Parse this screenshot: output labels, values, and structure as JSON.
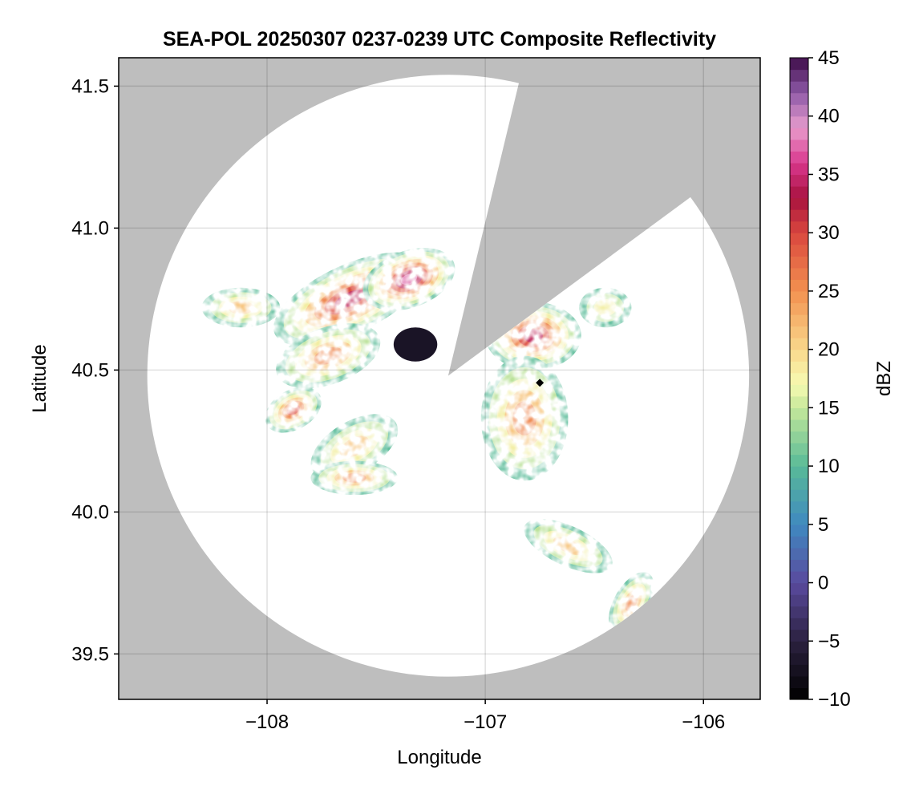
{
  "chart_data": {
    "type": "heatmap",
    "title": "SEA-POL 20250307 0237-0239 UTC Composite Reflectivity",
    "xlabel": "Longitude",
    "ylabel": "Latitude",
    "xlim": [
      -108.68,
      -105.74
    ],
    "ylim": [
      39.34,
      41.6
    ],
    "x_ticks": [
      -108,
      -107,
      -106
    ],
    "x_tick_labels": [
      "−108",
      "−107",
      "−106"
    ],
    "y_ticks": [
      39.5,
      40.0,
      40.5,
      41.0,
      41.5
    ],
    "y_tick_labels": [
      "39.5",
      "40.0",
      "40.5",
      "41.0",
      "41.5"
    ],
    "grid": true,
    "background_color": "#bebebe",
    "radar_coverage_color": "#ffffff",
    "radar_site": [
      -107.17,
      40.48
    ],
    "radar_range_lat_deg": 1.06,
    "blocked_sectors": [
      {
        "from_lat_lon": [
          41.53,
          -106.84
        ],
        "to_lat_lon": [
          41.12,
          -106.04
        ]
      }
    ],
    "marker": {
      "lon": -106.75,
      "lat": 40.455,
      "shape": "diamond",
      "color": "#000000"
    },
    "echo_regions": [
      {
        "lon": -108.12,
        "lat": 40.72,
        "rx": 0.18,
        "ry": 0.07,
        "peak_dbz": 24
      },
      {
        "lon": -107.62,
        "lat": 40.75,
        "rx": 0.38,
        "ry": 0.12,
        "angle": -25,
        "peak_dbz": 34
      },
      {
        "lon": -107.35,
        "lat": 40.82,
        "rx": 0.22,
        "ry": 0.1,
        "angle": -20,
        "peak_dbz": 38
      },
      {
        "lon": -107.72,
        "lat": 40.55,
        "rx": 0.25,
        "ry": 0.1,
        "angle": -20,
        "peak_dbz": 28
      },
      {
        "lon": -107.88,
        "lat": 40.36,
        "rx": 0.14,
        "ry": 0.07,
        "angle": -30,
        "peak_dbz": 33
      },
      {
        "lon": -107.6,
        "lat": 40.23,
        "rx": 0.22,
        "ry": 0.09,
        "angle": -30,
        "peak_dbz": 22
      },
      {
        "lon": -107.6,
        "lat": 40.12,
        "rx": 0.2,
        "ry": 0.06,
        "peak_dbz": 26
      },
      {
        "lon": -106.78,
        "lat": 40.62,
        "rx": 0.22,
        "ry": 0.12,
        "peak_dbz": 36
      },
      {
        "lon": -106.82,
        "lat": 40.33,
        "rx": 0.2,
        "ry": 0.22,
        "peak_dbz": 26
      },
      {
        "lon": -106.45,
        "lat": 40.72,
        "rx": 0.12,
        "ry": 0.07,
        "peak_dbz": 18
      },
      {
        "lon": -106.62,
        "lat": 39.88,
        "rx": 0.22,
        "ry": 0.07,
        "angle": 25,
        "peak_dbz": 22
      },
      {
        "lon": -106.33,
        "lat": 39.68,
        "rx": 0.08,
        "ry": 0.12,
        "angle": 30,
        "peak_dbz": 28
      }
    ],
    "low_reflectivity_region": {
      "lon": -107.32,
      "lat": 40.59,
      "rx": 0.1,
      "ry": 0.06,
      "dbz": -7
    },
    "colorbar": {
      "label": "dBZ",
      "range": [
        -10,
        45
      ],
      "ticks": [
        -10,
        -5,
        0,
        5,
        10,
        15,
        20,
        25,
        30,
        35,
        40,
        45
      ],
      "tick_labels": [
        "−10",
        "−5",
        "0",
        "5",
        "10",
        "15",
        "20",
        "25",
        "30",
        "35",
        "40",
        "45"
      ],
      "colormap_stops": [
        {
          "dbz": -10,
          "color": "#000000"
        },
        {
          "dbz": -5,
          "color": "#2b213f"
        },
        {
          "dbz": 0,
          "color": "#5a4a9e"
        },
        {
          "dbz": 5,
          "color": "#3f89c0"
        },
        {
          "dbz": 10,
          "color": "#58ba98"
        },
        {
          "dbz": 15,
          "color": "#c5e79a"
        },
        {
          "dbz": 17,
          "color": "#f7fbb2"
        },
        {
          "dbz": 20,
          "color": "#f9d88c"
        },
        {
          "dbz": 25,
          "color": "#f29150"
        },
        {
          "dbz": 30,
          "color": "#d9473e"
        },
        {
          "dbz": 33,
          "color": "#a8123f"
        },
        {
          "dbz": 36,
          "color": "#d9378d"
        },
        {
          "dbz": 39,
          "color": "#e89dcd"
        },
        {
          "dbz": 42,
          "color": "#8f5aa8"
        },
        {
          "dbz": 45,
          "color": "#3d0c48"
        }
      ]
    }
  }
}
